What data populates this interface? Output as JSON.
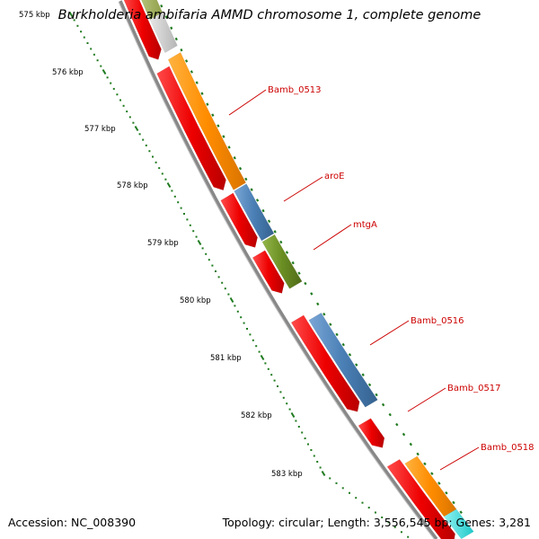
{
  "header": {
    "title": "Burkholderia ambifaria AMMD chromosome 1, complete genome"
  },
  "footer": {
    "accession": "Accession: NC_008390",
    "summary": "Topology: circular; Length: 3,556,545 bp; Genes: 3,281"
  },
  "scale": {
    "labels": [
      "575 kbp",
      "576 kbp",
      "577 kbp",
      "578 kbp",
      "579 kbp",
      "580 kbp",
      "581 kbp",
      "582 kbp",
      "583 kbp"
    ]
  },
  "genes": [
    {
      "name": "Bamb_0513",
      "color": "#ff8c00"
    },
    {
      "name": "aroE",
      "color": "#4a7fb5"
    },
    {
      "name": "mtgA",
      "color": "#6b8e23"
    },
    {
      "name": "Bamb_0516",
      "color": "#4a7fb5"
    },
    {
      "name": "Bamb_0517",
      "color": "#ff0000"
    },
    {
      "name": "Bamb_0518",
      "color": "#ff8c00"
    }
  ],
  "colors": {
    "backbone": "#888888",
    "reverse_strand": "#ff0000",
    "tick": "#1f7a1f",
    "label_line": "#cc0000",
    "gray_feature": "#c8c8c8",
    "cyan_feature": "#40e0e0"
  }
}
